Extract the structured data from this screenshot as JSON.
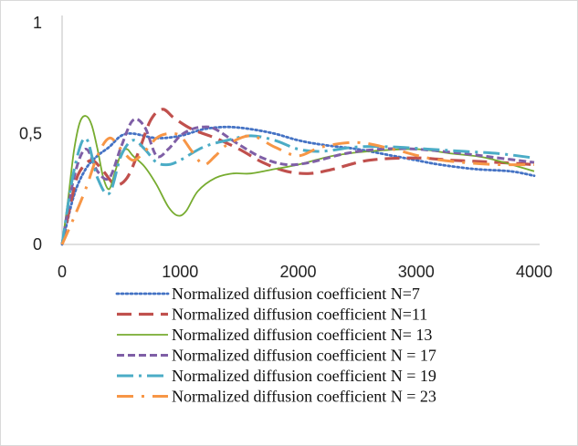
{
  "chart_data": {
    "type": "line",
    "title": "",
    "xlabel": "",
    "ylabel": "",
    "xlim": [
      0,
      4000
    ],
    "ylim": [
      0,
      1
    ],
    "x_ticks": [
      "0",
      "1000",
      "2000",
      "3000",
      "4000"
    ],
    "y_ticks": [
      "0",
      "0,5",
      "1"
    ],
    "grid": false,
    "legend_position": "bottom",
    "series": [
      {
        "name": "Normalized diffusion coefficient N=7",
        "color": "#4472C4",
        "dash": "dotted",
        "points": [
          [
            0,
            0
          ],
          [
            100,
            0.22
          ],
          [
            200,
            0.34
          ],
          [
            300,
            0.4
          ],
          [
            400,
            0.44
          ],
          [
            500,
            0.49
          ],
          [
            600,
            0.5
          ],
          [
            800,
            0.48
          ],
          [
            1000,
            0.49
          ],
          [
            1200,
            0.52
          ],
          [
            1400,
            0.53
          ],
          [
            1600,
            0.52
          ],
          [
            1800,
            0.5
          ],
          [
            2000,
            0.47
          ],
          [
            2200,
            0.45
          ],
          [
            2500,
            0.43
          ],
          [
            2800,
            0.4
          ],
          [
            3000,
            0.38
          ],
          [
            3200,
            0.36
          ],
          [
            3500,
            0.34
          ],
          [
            3800,
            0.33
          ],
          [
            4000,
            0.31
          ]
        ]
      },
      {
        "name": "Normalized diffusion coefficient N=11",
        "color": "#C0504D",
        "dash": "long-dash",
        "points": [
          [
            0,
            0
          ],
          [
            100,
            0.25
          ],
          [
            150,
            0.33
          ],
          [
            250,
            0.38
          ],
          [
            350,
            0.33
          ],
          [
            450,
            0.27
          ],
          [
            550,
            0.3
          ],
          [
            650,
            0.42
          ],
          [
            750,
            0.56
          ],
          [
            850,
            0.61
          ],
          [
            950,
            0.57
          ],
          [
            1100,
            0.52
          ],
          [
            1300,
            0.48
          ],
          [
            1500,
            0.43
          ],
          [
            1700,
            0.37
          ],
          [
            1900,
            0.33
          ],
          [
            2100,
            0.32
          ],
          [
            2300,
            0.34
          ],
          [
            2600,
            0.38
          ],
          [
            3000,
            0.39
          ],
          [
            3300,
            0.38
          ],
          [
            3700,
            0.37
          ],
          [
            4000,
            0.36
          ]
        ]
      },
      {
        "name": "Normalized diffusion coefficient  N= 13",
        "color": "#77AC30",
        "dash": "solid",
        "points": [
          [
            0,
            0
          ],
          [
            50,
            0.2
          ],
          [
            100,
            0.42
          ],
          [
            150,
            0.55
          ],
          [
            200,
            0.58
          ],
          [
            250,
            0.54
          ],
          [
            300,
            0.43
          ],
          [
            350,
            0.3
          ],
          [
            400,
            0.25
          ],
          [
            450,
            0.33
          ],
          [
            500,
            0.41
          ],
          [
            550,
            0.43
          ],
          [
            600,
            0.4
          ],
          [
            700,
            0.35
          ],
          [
            800,
            0.27
          ],
          [
            900,
            0.17
          ],
          [
            980,
            0.13
          ],
          [
            1050,
            0.15
          ],
          [
            1150,
            0.24
          ],
          [
            1300,
            0.3
          ],
          [
            1450,
            0.32
          ],
          [
            1600,
            0.32
          ],
          [
            1800,
            0.34
          ],
          [
            2000,
            0.36
          ],
          [
            2300,
            0.4
          ],
          [
            2600,
            0.42
          ],
          [
            3000,
            0.43
          ],
          [
            3300,
            0.41
          ],
          [
            3600,
            0.39
          ],
          [
            4000,
            0.33
          ]
        ]
      },
      {
        "name": "Normalized diffusion coefficient N = 17",
        "color": "#7F5FA6",
        "dash": "dashed",
        "points": [
          [
            0,
            0
          ],
          [
            100,
            0.3
          ],
          [
            200,
            0.43
          ],
          [
            300,
            0.33
          ],
          [
            400,
            0.3
          ],
          [
            500,
            0.44
          ],
          [
            600,
            0.56
          ],
          [
            700,
            0.53
          ],
          [
            800,
            0.4
          ],
          [
            900,
            0.43
          ],
          [
            1000,
            0.49
          ],
          [
            1100,
            0.52
          ],
          [
            1200,
            0.53
          ],
          [
            1300,
            0.52
          ],
          [
            1500,
            0.45
          ],
          [
            1700,
            0.39
          ],
          [
            1900,
            0.36
          ],
          [
            2100,
            0.37
          ],
          [
            2400,
            0.41
          ],
          [
            2700,
            0.43
          ],
          [
            3000,
            0.43
          ],
          [
            3400,
            0.41
          ],
          [
            3700,
            0.39
          ],
          [
            4000,
            0.37
          ]
        ]
      },
      {
        "name": "Normalized diffusion  coefficient N = 19",
        "color": "#4BACC6",
        "dash": "dash-dot",
        "points": [
          [
            0,
            0
          ],
          [
            100,
            0.33
          ],
          [
            200,
            0.48
          ],
          [
            300,
            0.3
          ],
          [
            400,
            0.23
          ],
          [
            500,
            0.4
          ],
          [
            600,
            0.47
          ],
          [
            700,
            0.43
          ],
          [
            800,
            0.37
          ],
          [
            900,
            0.36
          ],
          [
            1000,
            0.38
          ],
          [
            1200,
            0.44
          ],
          [
            1400,
            0.47
          ],
          [
            1600,
            0.49
          ],
          [
            1800,
            0.47
          ],
          [
            2000,
            0.43
          ],
          [
            2200,
            0.42
          ],
          [
            2500,
            0.44
          ],
          [
            2800,
            0.44
          ],
          [
            3100,
            0.43
          ],
          [
            3400,
            0.42
          ],
          [
            3700,
            0.41
          ],
          [
            4000,
            0.39
          ]
        ]
      },
      {
        "name": "Normalized diffusion coefficient N = 23",
        "color": "#F79646",
        "dash": "long-dash-dot",
        "points": [
          [
            0,
            0
          ],
          [
            100,
            0.12
          ],
          [
            200,
            0.25
          ],
          [
            300,
            0.4
          ],
          [
            400,
            0.48
          ],
          [
            500,
            0.43
          ],
          [
            600,
            0.38
          ],
          [
            700,
            0.42
          ],
          [
            800,
            0.48
          ],
          [
            900,
            0.5
          ],
          [
            1000,
            0.49
          ],
          [
            1100,
            0.42
          ],
          [
            1200,
            0.36
          ],
          [
            1300,
            0.4
          ],
          [
            1400,
            0.45
          ],
          [
            1600,
            0.49
          ],
          [
            1800,
            0.44
          ],
          [
            2000,
            0.4
          ],
          [
            2200,
            0.44
          ],
          [
            2500,
            0.46
          ],
          [
            2800,
            0.43
          ],
          [
            3100,
            0.39
          ],
          [
            3400,
            0.37
          ],
          [
            3700,
            0.36
          ],
          [
            4000,
            0.36
          ]
        ]
      }
    ]
  }
}
